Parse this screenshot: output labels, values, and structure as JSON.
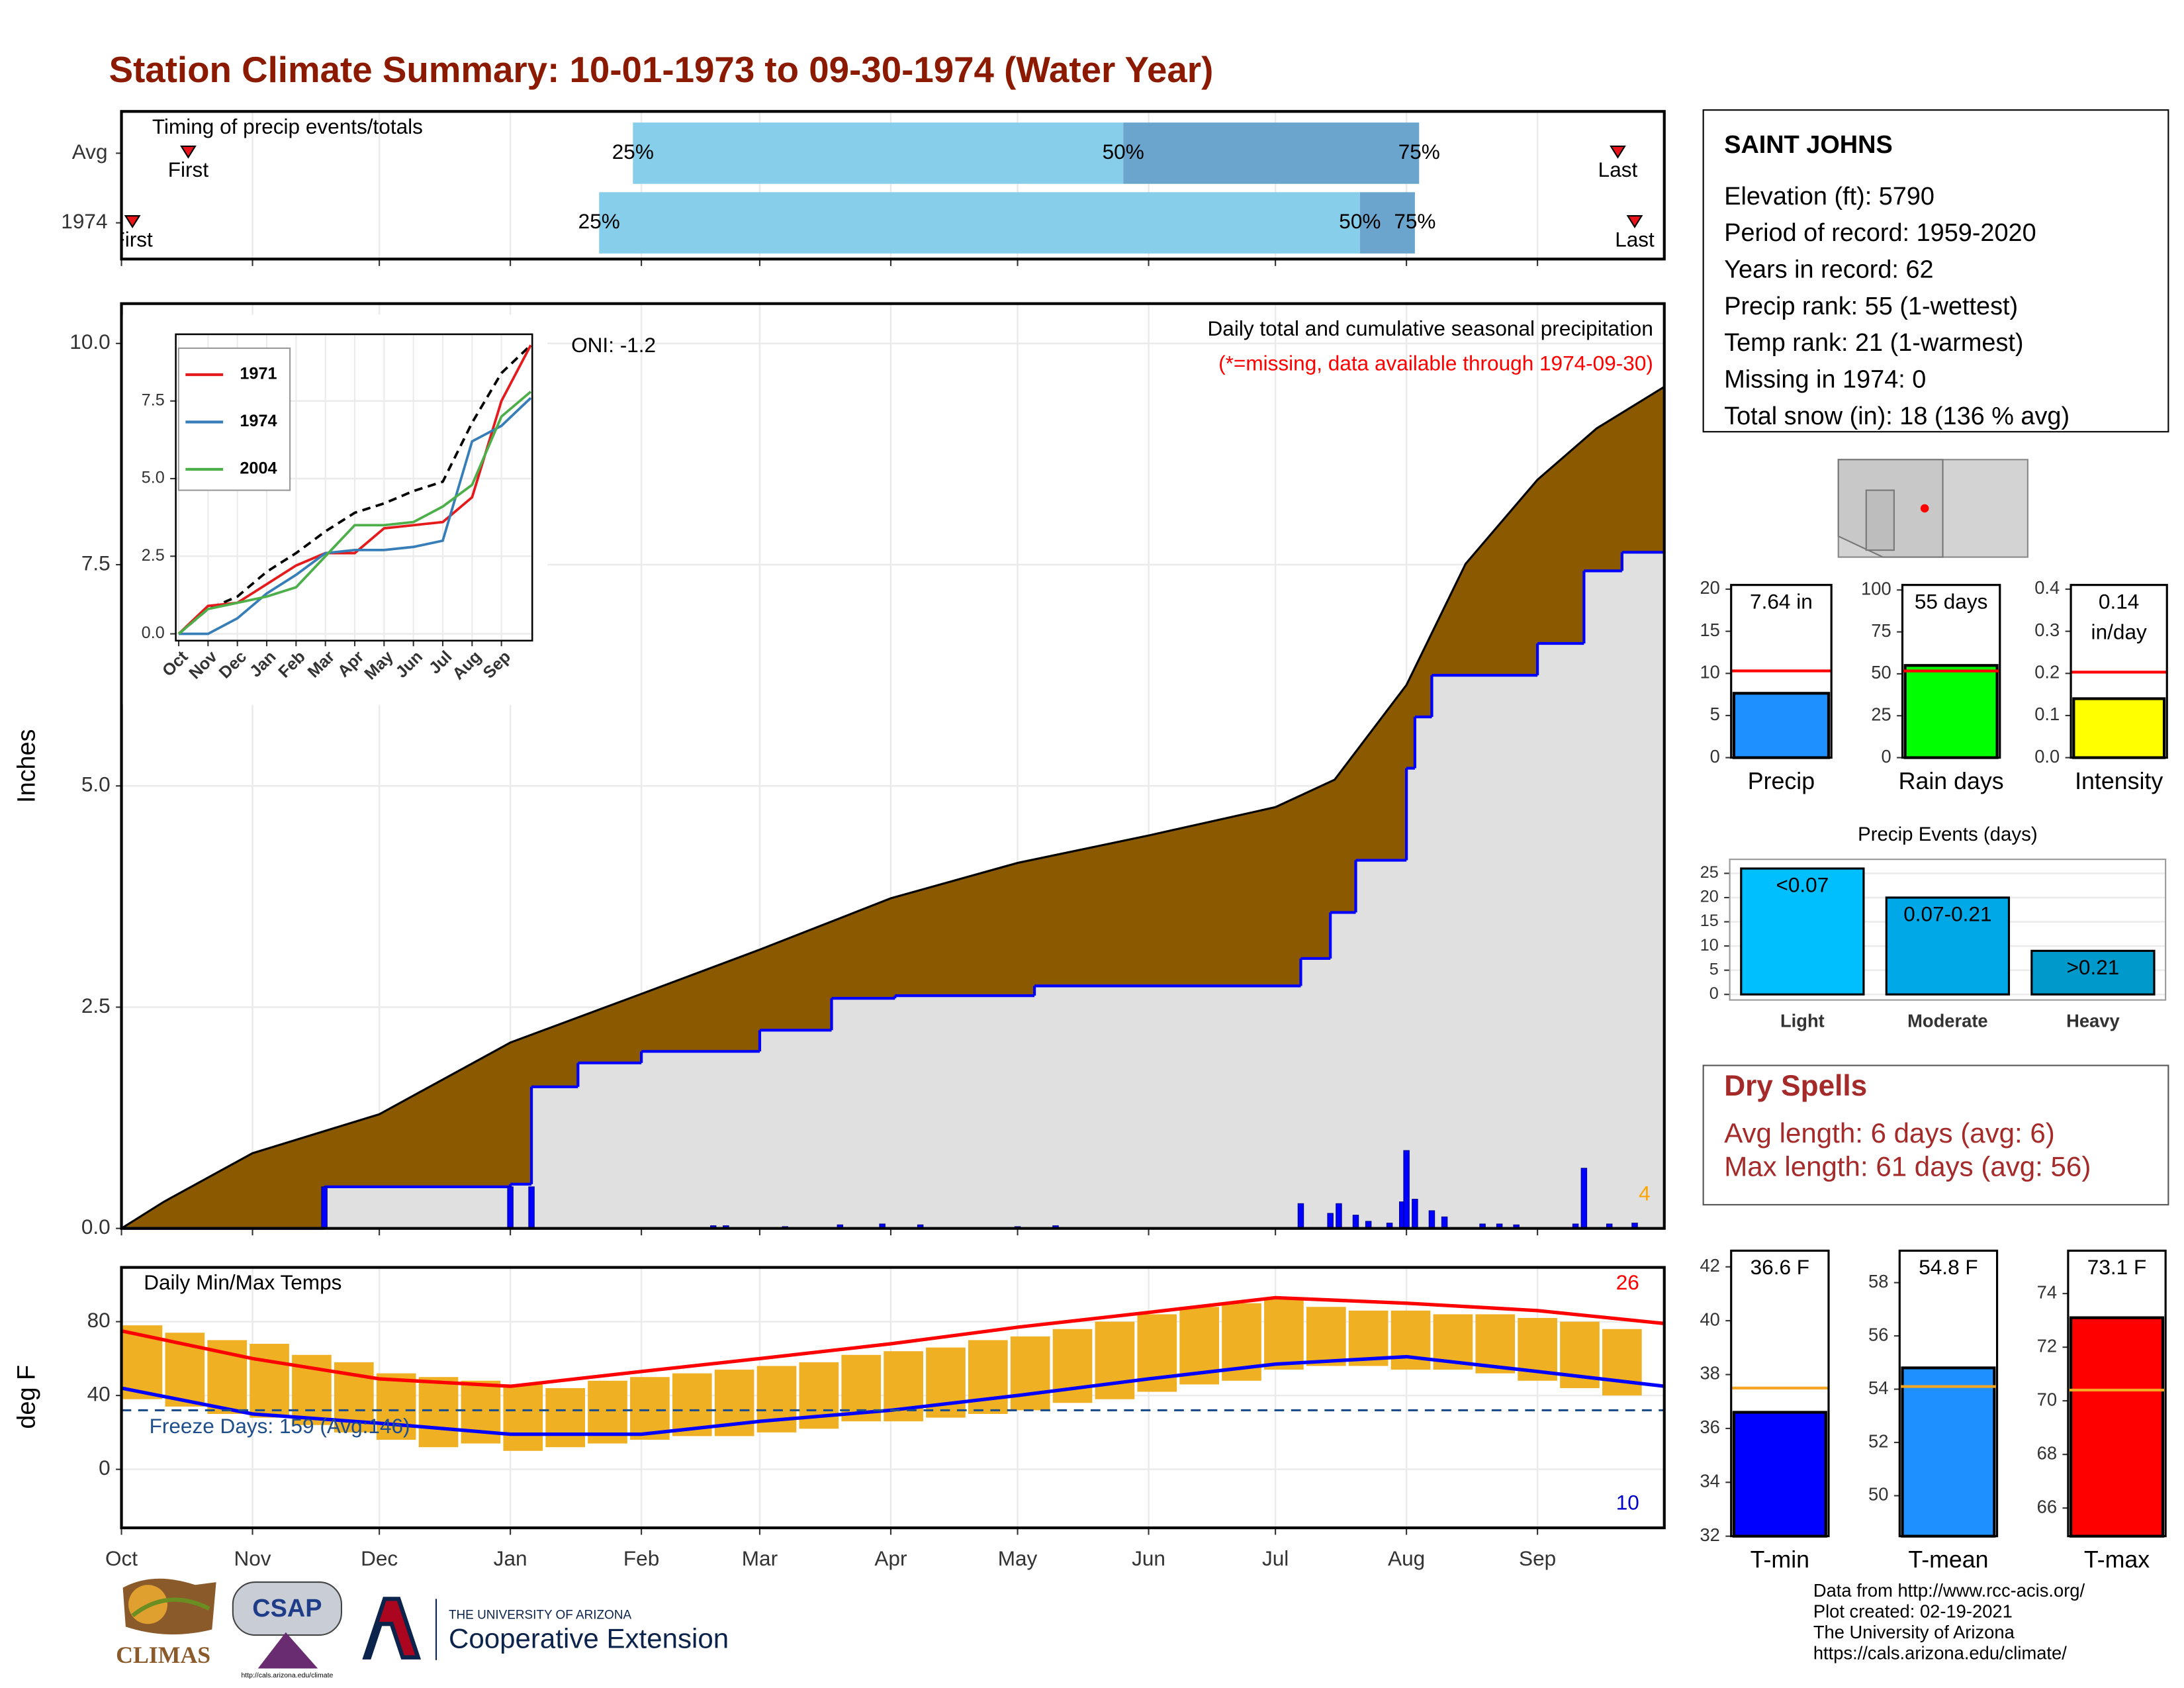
{
  "title": "Station Climate Summary: 10-01-1973 to 09-30-1974 (Water Year)",
  "chart_data": [
    {
      "type": "timing",
      "title": "Timing of precip events/totals",
      "categories": [
        "Avg",
        "1974"
      ],
      "rows": [
        {
          "first": 15.8,
          "q25": 121,
          "q50": 237,
          "q75": 307,
          "last": 354
        },
        {
          "first": 2.6,
          "q25": 113,
          "q50": 293,
          "q75": 306,
          "last": 358
        }
      ],
      "percent_labels": [
        "25%",
        "50%",
        "75%"
      ],
      "first_label": "First",
      "last_label": "Last",
      "colors": [
        "#87ceeb",
        "#6ba4cc",
        "#e8141a"
      ],
      "xlim": [
        0,
        365
      ]
    },
    {
      "type": "cumulative",
      "y_label": "Inches",
      "xlim": [
        0,
        365
      ],
      "ylim": [
        0,
        10.45
      ],
      "yticks": [
        {
          "value": 0,
          "label": "0.0"
        },
        {
          "value": 2.5,
          "label": "2.5"
        },
        {
          "value": 5,
          "label": "5.0"
        },
        {
          "value": 7.5,
          "label": "7.5"
        },
        {
          "value": 10,
          "label": "10.0"
        }
      ],
      "grid": true,
      "annotations": [
        "Daily total and cumulative seasonal precipitation",
        "(*=missing, data available through 1974-09-30)",
        "ONI: -1.2",
        "4"
      ],
      "series": [
        {
          "color": "#8b5a00",
          "x": [
            0,
            10,
            31,
            61,
            92,
            123,
            151,
            182,
            212,
            243,
            273,
            287,
            304,
            318,
            335,
            349,
            365
          ],
          "values": [
            0,
            0.3,
            0.85,
            1.29,
            2.1,
            2.65,
            3.15,
            3.73,
            4.13,
            4.44,
            4.76,
            5.07,
            6.14,
            7.51,
            8.46,
            9.04,
            9.51
          ]
        },
        {
          "color": "#0000ff",
          "fill": "#e0e0e0",
          "x": [
            0,
            48,
            92,
            97,
            108,
            123,
            151,
            168,
            183,
            216,
            279,
            286,
            292,
            304,
            306,
            310,
            335,
            346,
            355
          ],
          "values": [
            0,
            0.47,
            0.5,
            1.6,
            1.87,
            2.0,
            2.24,
            2.6,
            2.63,
            2.74,
            3.05,
            3.57,
            4.16,
            5.2,
            5.78,
            6.25,
            6.61,
            7.43,
            7.64
          ]
        }
      ],
      "daily": {
        "color": "#0000ff",
        "x": [
          48,
          92,
          97,
          140,
          143,
          157,
          170,
          180,
          189,
          212,
          221,
          279,
          286,
          288,
          292,
          295,
          300,
          303,
          304,
          306,
          310,
          313,
          322,
          326,
          330,
          344,
          346,
          352,
          358
        ],
        "values": [
          0.47,
          0.47,
          0.47,
          0.03,
          0.03,
          0.02,
          0.04,
          0.05,
          0.04,
          0.02,
          0.03,
          0.28,
          0.17,
          0.28,
          0.15,
          0.08,
          0.06,
          0.3,
          0.88,
          0.33,
          0.2,
          0.13,
          0.05,
          0.05,
          0.04,
          0.05,
          0.68,
          0.05,
          0.06
        ]
      }
    },
    {
      "type": "line",
      "xlim": [
        -0.1,
        12.05
      ],
      "ylim": [
        -0.22,
        9.65
      ],
      "xticks": [
        {
          "value": 0,
          "label": "Oct"
        },
        {
          "value": 1,
          "label": "Nov"
        },
        {
          "value": 2,
          "label": "Dec"
        },
        {
          "value": 3,
          "label": "Jan"
        },
        {
          "value": 4,
          "label": "Feb"
        },
        {
          "value": 5,
          "label": "Mar"
        },
        {
          "value": 6,
          "label": "Apr"
        },
        {
          "value": 7,
          "label": "May"
        },
        {
          "value": 8,
          "label": "Jun"
        },
        {
          "value": 9,
          "label": "Jul"
        },
        {
          "value": 10,
          "label": "Aug"
        },
        {
          "value": 11,
          "label": "Sep"
        }
      ],
      "yticks": [
        {
          "value": 0,
          "label": "0.0"
        },
        {
          "value": 2.5,
          "label": "2.5"
        },
        {
          "value": 5,
          "label": "5.0"
        },
        {
          "value": 7.5,
          "label": "7.5"
        }
      ],
      "x": [
        0,
        1,
        2,
        3,
        4,
        5,
        6,
        7,
        8,
        9,
        10,
        11,
        12
      ],
      "series": [
        {
          "color": "#000000",
          "dashed": true,
          "values": [
            0,
            0.8,
            1.2,
            2.0,
            2.6,
            3.3,
            3.9,
            4.2,
            4.6,
            4.9,
            6.8,
            8.4,
            9.3
          ]
        },
        {
          "name": "1971",
          "color": "#e41a1c",
          "values": [
            0,
            0.9,
            1.0,
            1.6,
            2.2,
            2.6,
            2.6,
            3.4,
            3.5,
            3.6,
            4.4,
            7.5,
            9.3
          ]
        },
        {
          "name": "1974",
          "color": "#377eb8",
          "values": [
            0,
            0,
            0.5,
            1.3,
            1.9,
            2.6,
            2.7,
            2.7,
            2.8,
            3.0,
            6.2,
            6.7,
            7.6
          ]
        },
        {
          "name": "2004",
          "color": "#4daf4a",
          "values": [
            0,
            0.8,
            1.0,
            1.2,
            1.5,
            2.5,
            3.5,
            3.5,
            3.6,
            4.1,
            4.8,
            7.0,
            7.8
          ]
        }
      ]
    },
    {
      "type": "temperature",
      "title": "Daily Min/Max Temps",
      "y_label": "deg F",
      "xlim": [
        0,
        365
      ],
      "ylim": [
        -31.7,
        109.4
      ],
      "xticks": [
        {
          "value": 0,
          "label": "Oct"
        },
        {
          "value": 31,
          "label": "Nov"
        },
        {
          "value": 61,
          "label": "Dec"
        },
        {
          "value": 92,
          "label": "Jan"
        },
        {
          "value": 123,
          "label": "Feb"
        },
        {
          "value": 151,
          "label": "Mar"
        },
        {
          "value": 182,
          "label": "Apr"
        },
        {
          "value": 212,
          "label": "May"
        },
        {
          "value": 243,
          "label": "Jun"
        },
        {
          "value": 273,
          "label": "Jul"
        },
        {
          "value": 304,
          "label": "Aug"
        },
        {
          "value": 335,
          "label": "Sep"
        }
      ],
      "yticks": [
        0,
        40,
        80
      ],
      "grid": true,
      "freeze": 32,
      "annotations": [
        "Freeze Days: 159 (Avg:146)",
        "26",
        "10"
      ],
      "bars": {
        "color": "#f0b023",
        "x": [
          5,
          15,
          25,
          35,
          45,
          55,
          65,
          75,
          85,
          95,
          105,
          115,
          125,
          135,
          145,
          155,
          165,
          175,
          185,
          195,
          205,
          215,
          225,
          235,
          245,
          255,
          265,
          275,
          285,
          295,
          305,
          315,
          325,
          335,
          345,
          355
        ],
        "max": [
          78,
          74,
          70,
          68,
          62,
          58,
          52,
          50,
          48,
          46,
          44,
          48,
          50,
          52,
          54,
          56,
          58,
          62,
          64,
          66,
          70,
          72,
          76,
          80,
          84,
          88,
          90,
          92,
          88,
          86,
          86,
          84,
          84,
          82,
          80,
          76
        ],
        "min": [
          38,
          34,
          30,
          28,
          24,
          20,
          16,
          12,
          14,
          10,
          12,
          14,
          16,
          18,
          18,
          20,
          22,
          26,
          26,
          28,
          30,
          32,
          36,
          38,
          42,
          46,
          48,
          54,
          56,
          56,
          54,
          54,
          52,
          48,
          44,
          40
        ]
      },
      "series": [
        {
          "color": "#ff0000",
          "x": [
            0,
            31,
            61,
            92,
            123,
            151,
            182,
            212,
            243,
            273,
            304,
            335,
            365
          ],
          "values": [
            75,
            60,
            49,
            45,
            53,
            60,
            68,
            77,
            85,
            93,
            90,
            86,
            79
          ]
        },
        {
          "color": "#0000ff",
          "x": [
            0,
            31,
            61,
            92,
            123,
            151,
            182,
            212,
            243,
            273,
            304,
            335,
            365
          ],
          "values": [
            44,
            30,
            25,
            19,
            19,
            26,
            32,
            40,
            49,
            57,
            61,
            53,
            45
          ]
        }
      ]
    },
    {
      "type": "bar",
      "categories": [
        "Precip"
      ],
      "values": [
        7.64
      ],
      "value_labels": [
        "7.64 in"
      ],
      "color": "#1e90ff",
      "reference": 10.3,
      "reference_color": "#ff0000",
      "ylim": [
        0,
        20.5
      ],
      "yticks": [
        0,
        5,
        10,
        15,
        20
      ]
    },
    {
      "type": "bar",
      "categories": [
        "Rain days"
      ],
      "values": [
        55
      ],
      "value_labels": [
        "55 days"
      ],
      "color": "#00ff00",
      "reference": 51.7,
      "reference_color": "#ff0000",
      "ylim": [
        0,
        103
      ],
      "yticks": [
        0,
        25,
        50,
        75,
        100
      ]
    },
    {
      "type": "bar",
      "categories": [
        "Intensity"
      ],
      "values": [
        0.14
      ],
      "value_labels": [
        "0.14 in/day"
      ],
      "color": "#ffff00",
      "reference": 0.203,
      "reference_color": "#ff0000",
      "ylim": [
        0,
        0.41
      ],
      "yticks": [
        {
          "value": 0,
          "label": "0.0"
        },
        0.1,
        0.2,
        0.3,
        0.4
      ]
    },
    {
      "type": "events",
      "title": "Precip Events (days)",
      "categories": [
        "Light",
        "Moderate",
        "Heavy"
      ],
      "values": [
        26,
        20,
        9
      ],
      "bar_labels": [
        "<0.07",
        "0.07-0.21",
        ">0.21"
      ],
      "colors": [
        "#00bfff",
        "#00a8e8",
        "#0099cc"
      ],
      "ylim": [
        -1.15,
        27.9
      ],
      "yticks": [
        0,
        5,
        10,
        15,
        20,
        25
      ],
      "grid": true
    },
    {
      "type": "bar",
      "categories": [
        "T-min"
      ],
      "values": [
        36.6
      ],
      "value_labels": [
        "36.6 F"
      ],
      "color": "#0000ff",
      "reference": 37.5,
      "reference_color": "#f5a623",
      "ylim": [
        32,
        42.6
      ],
      "yticks": [
        32,
        34,
        36,
        38,
        40,
        42
      ]
    },
    {
      "type": "bar",
      "categories": [
        "T-mean"
      ],
      "values": [
        54.8
      ],
      "value_labels": [
        "54.8 F"
      ],
      "color": "#1e90ff",
      "reference": 54.1,
      "reference_color": "#f5a623",
      "ylim": [
        48.48,
        59.2
      ],
      "yticks": [
        50,
        52,
        54,
        56,
        58
      ]
    },
    {
      "type": "bar",
      "categories": [
        "T-max"
      ],
      "values": [
        73.1
      ],
      "value_labels": [
        "73.1 F"
      ],
      "color": "#ff0000",
      "reference": 70.4,
      "reference_color": "#f5a623",
      "ylim": [
        64.95,
        75.6
      ],
      "yticks": [
        66,
        68,
        70,
        72,
        74
      ]
    }
  ],
  "station": {
    "name": "SAINT JOHNS",
    "lines": [
      "Elevation (ft): 5790",
      "Period of record: 1959-2020",
      "Years in record: 62",
      "Precip rank: 55 (1-wettest)",
      "Temp rank: 21 (1-warmest)",
      "Missing in 1974: 0",
      "Total snow (in): 18 (136 % avg)"
    ]
  },
  "dry_spells": {
    "title": "Dry Spells",
    "lines": [
      "Avg length: 6 days (avg: 6)",
      "Max length: 61 days (avg: 56)"
    ]
  },
  "footer": [
    "Data from http://www.rcc-acis.org/",
    "Plot created: 02-19-2021",
    "The University of Arizona",
    "https://cals.arizona.edu/climate/"
  ],
  "logos": {
    "climas": "CLIMAS",
    "csap": "CSAP",
    "csap_url": "http://cals.arizona.edu/climate",
    "ua": "THE UNIVERSITY OF ARIZONA",
    "extension": "Cooperative Extension"
  }
}
